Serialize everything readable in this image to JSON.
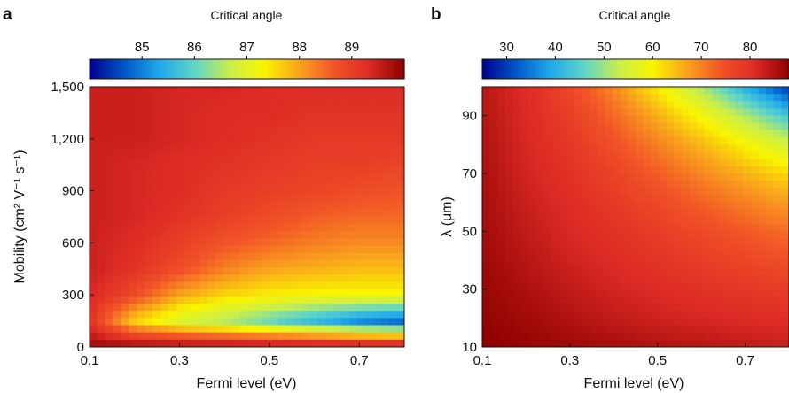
{
  "colors": {
    "colormap": "jet",
    "stops": [
      "#00008f",
      "#0057c8",
      "#1fa9ea",
      "#5fd5c8",
      "#c9ee4d",
      "#f9f500",
      "#f9a31d",
      "#f25427",
      "#dd2b25",
      "#8e0000"
    ]
  },
  "chart_data": [
    {
      "panel_label": "a",
      "type": "heatmap",
      "colorbar": {
        "title": "Critical angle",
        "range": [
          84.0,
          90.0
        ],
        "ticks": [
          85,
          86,
          87,
          88,
          89
        ],
        "tick_labels": [
          "85",
          "86",
          "87",
          "88",
          "89"
        ],
        "placement": "top"
      },
      "xlabel": "Fermi level (eV)",
      "ylabel": "Mobility (cm² V⁻¹ s⁻¹)",
      "xlim": [
        0.1,
        0.8
      ],
      "ylim": [
        0,
        1500
      ],
      "x_ticks": [
        0.1,
        0.3,
        0.5,
        0.7
      ],
      "x_tick_labels": [
        "0.1",
        "0.3",
        "0.5",
        "0.7"
      ],
      "y_ticks": [
        0,
        300,
        600,
        900,
        1200,
        1500
      ],
      "y_tick_labels": [
        "0",
        "300",
        "600",
        "900",
        "1,200",
        "1,500"
      ],
      "x": [
        0.1,
        0.2,
        0.3,
        0.4,
        0.5,
        0.6,
        0.7,
        0.8
      ],
      "y": [
        0,
        150,
        300,
        450,
        600,
        750,
        900,
        1050,
        1200,
        1350,
        1500
      ],
      "z": [
        [
          89.9,
          89.9,
          89.9,
          89.9,
          89.9,
          89.9,
          89.9,
          89.9
        ],
        [
          89.2,
          87.6,
          86.9,
          86.5,
          86.0,
          85.5,
          85.0,
          84.7
        ],
        [
          89.4,
          88.8,
          88.0,
          87.6,
          87.4,
          87.3,
          87.3,
          87.3
        ],
        [
          89.5,
          89.2,
          88.8,
          88.3,
          88.0,
          87.9,
          87.8,
          87.8
        ],
        [
          89.5,
          89.3,
          89.0,
          88.7,
          88.5,
          88.3,
          88.2,
          88.2
        ],
        [
          89.5,
          89.4,
          89.2,
          89.0,
          88.8,
          88.6,
          88.5,
          88.5
        ],
        [
          89.5,
          89.4,
          89.3,
          89.1,
          89.0,
          88.9,
          88.8,
          88.7
        ],
        [
          89.5,
          89.4,
          89.3,
          89.2,
          89.1,
          89.0,
          89.0,
          88.9
        ],
        [
          89.5,
          89.5,
          89.4,
          89.3,
          89.2,
          89.1,
          89.1,
          89.1
        ],
        [
          89.5,
          89.5,
          89.4,
          89.3,
          89.3,
          89.2,
          89.2,
          89.2
        ],
        [
          89.5,
          89.5,
          89.4,
          89.4,
          89.3,
          89.3,
          89.3,
          89.3
        ]
      ]
    },
    {
      "panel_label": "b",
      "type": "heatmap",
      "colorbar": {
        "title": "Critical angle",
        "range": [
          25,
          88
        ],
        "ticks": [
          30,
          40,
          50,
          60,
          70,
          80
        ],
        "tick_labels": [
          "30",
          "40",
          "50",
          "60",
          "70",
          "80"
        ],
        "placement": "top"
      },
      "xlabel": "Fermi level (eV)",
      "ylabel": "λ (μm)",
      "xlim": [
        0.1,
        0.8
      ],
      "ylim": [
        10,
        100
      ],
      "x_ticks": [
        0.1,
        0.3,
        0.5,
        0.7
      ],
      "x_tick_labels": [
        "0.1",
        "0.3",
        "0.5",
        "0.7"
      ],
      "y_ticks": [
        10,
        30,
        50,
        70,
        90
      ],
      "y_tick_labels": [
        "10",
        "30",
        "50",
        "70",
        "90"
      ],
      "x": [
        0.1,
        0.2,
        0.3,
        0.4,
        0.5,
        0.6,
        0.7,
        0.8
      ],
      "y": [
        10,
        20,
        30,
        40,
        50,
        60,
        70,
        80,
        90,
        100
      ],
      "z": [
        [
          87.8,
          87.3,
          86.6,
          85.8,
          85.0,
          84.3,
          83.6,
          83.0
        ],
        [
          87.4,
          86.3,
          84.9,
          83.5,
          82.4,
          81.6,
          80.9,
          80.3
        ],
        [
          87.0,
          85.3,
          83.5,
          82.0,
          80.8,
          79.8,
          78.8,
          77.8
        ],
        [
          86.6,
          84.3,
          82.3,
          80.8,
          79.3,
          77.8,
          76.3,
          74.8
        ],
        [
          86.2,
          83.5,
          81.4,
          79.7,
          77.8,
          75.7,
          73.6,
          71.6
        ],
        [
          85.8,
          82.7,
          80.6,
          78.4,
          75.8,
          72.9,
          70.1,
          67.4
        ],
        [
          85.4,
          82.0,
          79.8,
          76.8,
          73.3,
          69.5,
          65.8,
          62.0
        ],
        [
          85.0,
          81.5,
          78.8,
          74.8,
          70.1,
          65.2,
          60.0,
          54.5
        ],
        [
          84.6,
          81.1,
          77.6,
          72.3,
          66.0,
          59.2,
          51.5,
          43.0
        ],
        [
          84.3,
          80.7,
          76.2,
          69.2,
          60.6,
          51.0,
          40.0,
          29.0
        ]
      ]
    }
  ]
}
